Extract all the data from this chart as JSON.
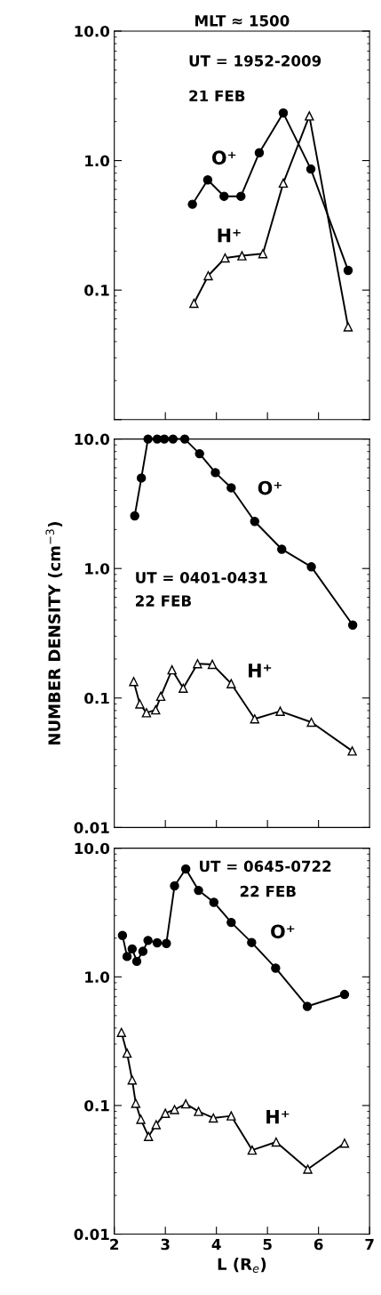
{
  "chart_data": [
    {
      "type": "line",
      "title": "MLT ≈ 1500",
      "annotations": [
        "UT = 1952-2009",
        "21 FEB"
      ],
      "log": true,
      "xlim": [
        2,
        7
      ],
      "xticks": [
        {
          "value": 3,
          "label": null
        },
        {
          "value": 4,
          "label": null
        },
        {
          "value": 5,
          "label": null
        },
        {
          "value": 6,
          "label": null
        }
      ],
      "ylim": [
        0.01,
        10
      ],
      "yticks": [
        {
          "value": 0.01,
          "label": null
        },
        {
          "value": 0.1,
          "label": "0.1"
        },
        {
          "value": 1,
          "label": "1.0"
        },
        {
          "value": 10,
          "label": "10.0"
        }
      ],
      "tick_labels": "y",
      "grid": false,
      "legend": false,
      "series": [
        {
          "name": "O⁺",
          "color": "#000000",
          "marker": "circle",
          "x": [
            3.53,
            3.83,
            4.15,
            4.48,
            4.84,
            5.31,
            5.85,
            6.58
          ],
          "values": [
            0.46,
            0.71,
            0.53,
            0.53,
            1.15,
            2.33,
            0.86,
            0.142
          ]
        },
        {
          "name": "H⁺",
          "color": "#000000",
          "marker": "triangle",
          "x": [
            3.56,
            3.84,
            4.17,
            4.5,
            4.91,
            5.31,
            5.82,
            6.58
          ],
          "values": [
            0.079,
            0.129,
            0.177,
            0.184,
            0.191,
            0.67,
            2.21,
            0.052
          ]
        }
      ]
    },
    {
      "type": "line",
      "ylabel": "NUMBER DENSITY (cm$^{−3}$)",
      "annotations": [
        "UT = 0401-0431",
        "22 FEB"
      ],
      "log": true,
      "xlim": [
        2,
        7
      ],
      "xticks": [
        {
          "value": 3,
          "label": null
        },
        {
          "value": 4,
          "label": null
        },
        {
          "value": 5,
          "label": null
        },
        {
          "value": 6,
          "label": null
        }
      ],
      "ylim": [
        0.01,
        10
      ],
      "yticks": [
        {
          "value": 0.01,
          "label": "0.01"
        },
        {
          "value": 0.1,
          "label": "0.1"
        },
        {
          "value": 1,
          "label": "1.0"
        },
        {
          "value": 10,
          "label": "10.0"
        }
      ],
      "tick_labels": "y",
      "grid": false,
      "legend": false,
      "series": [
        {
          "name": "O⁺",
          "color": "#000000",
          "marker": "circle",
          "x": [
            2.4,
            2.53,
            2.66,
            2.84,
            2.98,
            3.15,
            3.38,
            3.67,
            3.98,
            4.29,
            4.75,
            5.28,
            5.86,
            6.67
          ],
          "values": [
            2.55,
            5.0,
            10.0,
            10.0,
            10.0,
            10.0,
            10.0,
            7.7,
            5.5,
            4.2,
            2.31,
            1.41,
            1.03,
            0.366
          ]
        },
        {
          "name": "H⁺",
          "color": "#000000",
          "marker": "triangle",
          "x": [
            2.38,
            2.5,
            2.63,
            2.81,
            2.91,
            3.13,
            3.35,
            3.63,
            3.92,
            4.29,
            4.75,
            5.25,
            5.86,
            6.66
          ],
          "values": [
            0.134,
            0.09,
            0.077,
            0.081,
            0.103,
            0.165,
            0.119,
            0.184,
            0.182,
            0.129,
            0.069,
            0.079,
            0.065,
            0.039
          ]
        }
      ]
    },
    {
      "type": "line",
      "xlabel": "L (R$_{e}$)",
      "annotations": [
        "UT = 0645-0722",
        "22 FEB"
      ],
      "log": true,
      "xlim": [
        2,
        7
      ],
      "xticks": [
        2,
        3,
        4,
        5,
        6,
        7
      ],
      "ylim": [
        0.01,
        10
      ],
      "yticks": [
        {
          "value": 0.01,
          "label": "0.01"
        },
        {
          "value": 0.1,
          "label": "0.1"
        },
        {
          "value": 1,
          "label": "1.0"
        },
        {
          "value": 10,
          "label": "10.0"
        }
      ],
      "grid": false,
      "legend": false,
      "series": [
        {
          "name": "O⁺",
          "color": "#000000",
          "marker": "circle",
          "x": [
            2.16,
            2.25,
            2.35,
            2.44,
            2.56,
            2.66,
            2.84,
            3.02,
            3.18,
            3.4,
            3.65,
            3.95,
            4.29,
            4.69,
            5.16,
            5.78,
            6.51
          ],
          "values": [
            2.1,
            1.44,
            1.65,
            1.32,
            1.58,
            1.92,
            1.84,
            1.82,
            5.1,
            6.9,
            4.7,
            3.8,
            2.65,
            1.85,
            1.17,
            0.59,
            0.73
          ]
        },
        {
          "name": "H⁺",
          "color": "#000000",
          "marker": "triangle",
          "x": [
            2.14,
            2.25,
            2.35,
            2.42,
            2.52,
            2.67,
            2.82,
            3.0,
            3.18,
            3.4,
            3.65,
            3.94,
            4.29,
            4.7,
            5.17,
            5.79,
            6.51
          ],
          "values": [
            0.37,
            0.255,
            0.158,
            0.104,
            0.078,
            0.0575,
            0.071,
            0.087,
            0.093,
            0.103,
            0.09,
            0.08,
            0.083,
            0.045,
            0.052,
            0.032,
            0.051
          ]
        }
      ]
    }
  ]
}
